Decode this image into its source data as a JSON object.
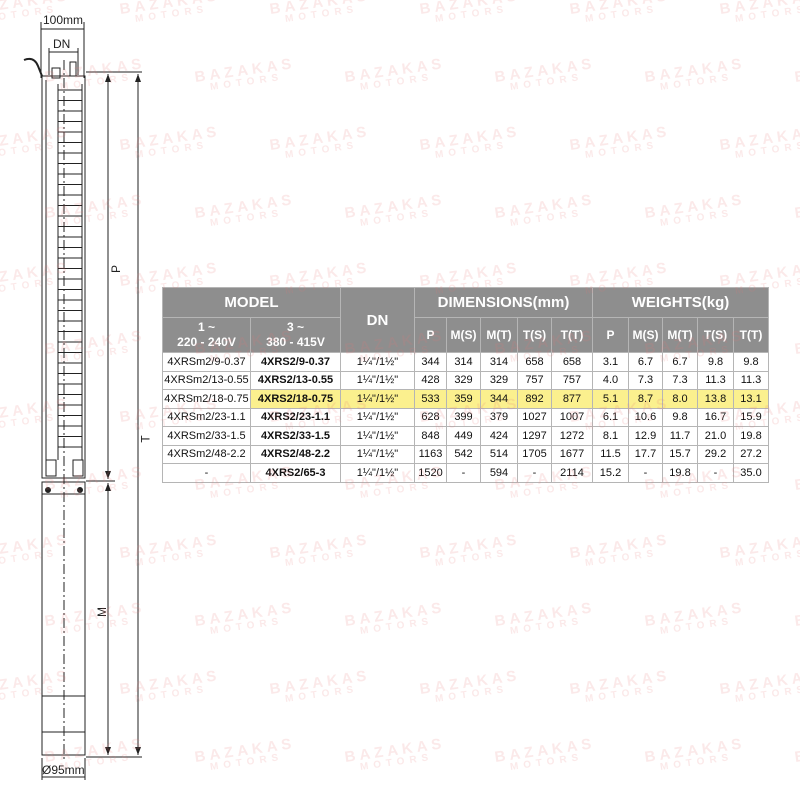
{
  "drawing": {
    "width_label": "100mm",
    "dn_label": "DN",
    "p_label": "P",
    "t_label": "T",
    "m_label": "M",
    "diameter_label": "Ø95mm"
  },
  "watermark": {
    "line1": "BAZAKAS",
    "line2": "MOTORS"
  },
  "table": {
    "header": {
      "model": "MODEL",
      "dn": "DN",
      "dimensions": "DIMENSIONS(mm)",
      "weights": "WEIGHTS(kg)",
      "single_phase": "1 ~",
      "single_phase_voltage": "220 - 240V",
      "three_phase": "3 ~",
      "three_phase_voltage": "380 - 415V",
      "dim_cols": [
        "P",
        "M(S)",
        "M(T)",
        "T(S)",
        "T(T)"
      ],
      "weight_cols": [
        "P",
        "M(S)",
        "M(T)",
        "T(S)",
        "T(T)"
      ]
    },
    "highlight_color": "#fbf08e",
    "highlighted_row": 2,
    "rows": [
      {
        "single": "4XRSm2/9-0.37",
        "three": "4XRS2/9-0.37",
        "dn": "1¼\"/1½\"",
        "dims": [
          "344",
          "314",
          "314",
          "658",
          "658"
        ],
        "weights": [
          "3.1",
          "6.7",
          "6.7",
          "9.8",
          "9.8"
        ]
      },
      {
        "single": "4XRSm2/13-0.55",
        "three": "4XRS2/13-0.55",
        "dn": "1¼\"/1½\"",
        "dims": [
          "428",
          "329",
          "329",
          "757",
          "757"
        ],
        "weights": [
          "4.0",
          "7.3",
          "7.3",
          "11.3",
          "11.3"
        ]
      },
      {
        "single": "4XRSm2/18-0.75",
        "three": "4XRS2/18-0.75",
        "dn": "1¼\"/1½\"",
        "dims": [
          "533",
          "359",
          "344",
          "892",
          "877"
        ],
        "weights": [
          "5.1",
          "8.7",
          "8.0",
          "13.8",
          "13.1"
        ]
      },
      {
        "single": "4XRSm2/23-1.1",
        "three": "4XRS2/23-1.1",
        "dn": "1¼\"/1½\"",
        "dims": [
          "628",
          "399",
          "379",
          "1027",
          "1007"
        ],
        "weights": [
          "6.1",
          "10.6",
          "9.8",
          "16.7",
          "15.9"
        ]
      },
      {
        "single": "4XRSm2/33-1.5",
        "three": "4XRS2/33-1.5",
        "dn": "1¼\"/1½\"",
        "dims": [
          "848",
          "449",
          "424",
          "1297",
          "1272"
        ],
        "weights": [
          "8.1",
          "12.9",
          "11.7",
          "21.0",
          "19.8"
        ]
      },
      {
        "single": "4XRSm2/48-2.2",
        "three": "4XRS2/48-2.2",
        "dn": "1¼\"/1½\"",
        "dims": [
          "1163",
          "542",
          "514",
          "1705",
          "1677"
        ],
        "weights": [
          "11.5",
          "17.7",
          "15.7",
          "29.2",
          "27.2"
        ]
      },
      {
        "single": "-",
        "three": "4XRS2/65-3",
        "dn": "1¼\"/1½\"",
        "dims": [
          "1520",
          "-",
          "594",
          "-",
          "2114"
        ],
        "weights": [
          "15.2",
          "-",
          "19.8",
          "-",
          "35.0"
        ]
      }
    ]
  }
}
